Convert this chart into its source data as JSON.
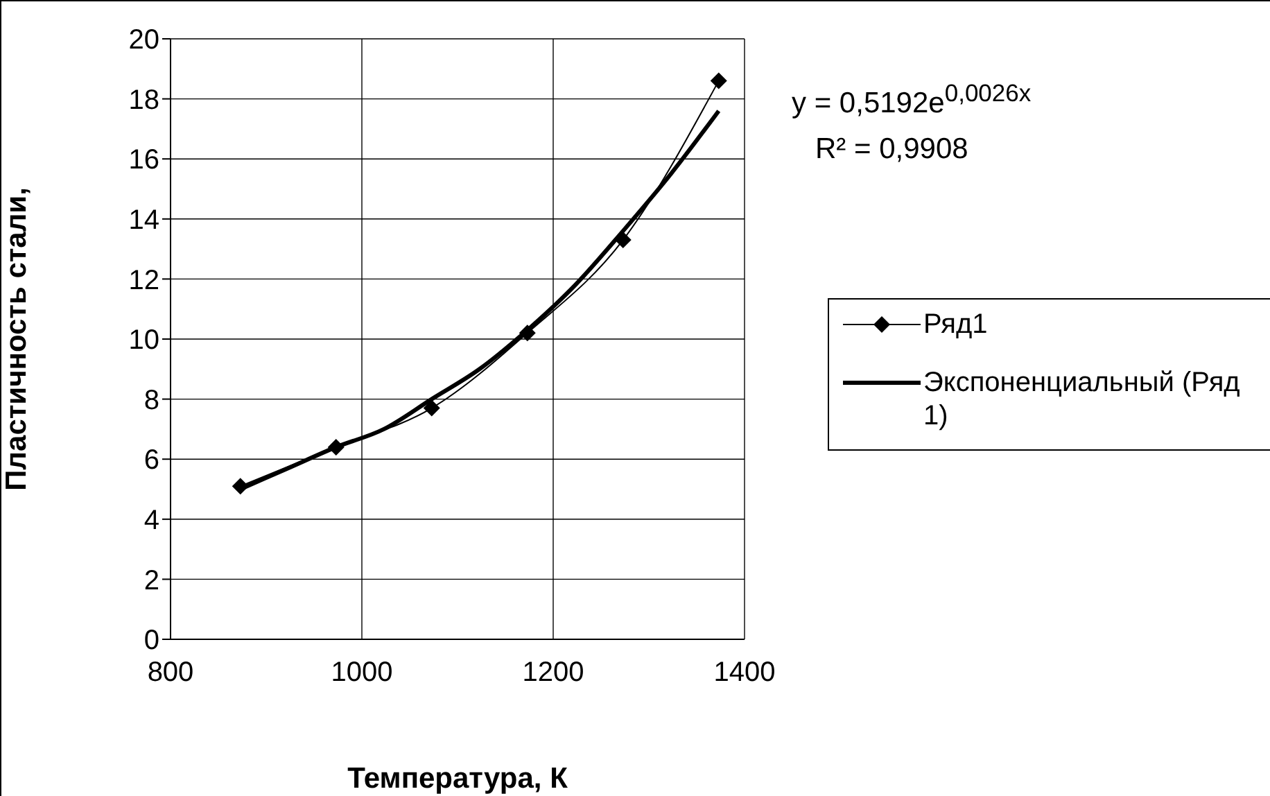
{
  "chart_data": {
    "type": "line",
    "xlabel": "Температура, К",
    "ylabel": "Пластичность стали,",
    "xlim": [
      800,
      1400
    ],
    "xticks": [
      800,
      1000,
      1200,
      1400
    ],
    "ylim": [
      0,
      20
    ],
    "yticks": [
      0,
      2,
      4,
      6,
      8,
      10,
      12,
      14,
      16,
      18,
      20
    ],
    "grid": true,
    "legend": "right",
    "annotations": [
      "y = 0,5192e$^{0,0026x}$",
      "R² = 0,9908"
    ],
    "series": [
      {
        "name": "Ряд1",
        "color": "#000000",
        "marker": "diamond",
        "x": [
          873,
          973,
          1073,
          1173,
          1273,
          1373
        ],
        "values": [
          5.1,
          6.4,
          7.7,
          10.2,
          13.3,
          18.6
        ]
      },
      {
        "name": "Экспоненциальный (Ряд1)",
        "color": "#000000",
        "marker": "none",
        "x": [
          873,
          923,
          973,
          1023,
          1073,
          1123,
          1173,
          1223,
          1273,
          1323,
          1373
        ],
        "values": [
          5.0,
          5.7,
          6.4,
          7.0,
          8.0,
          9.0,
          10.3,
          11.8,
          13.6,
          15.5,
          17.6
        ]
      }
    ]
  }
}
